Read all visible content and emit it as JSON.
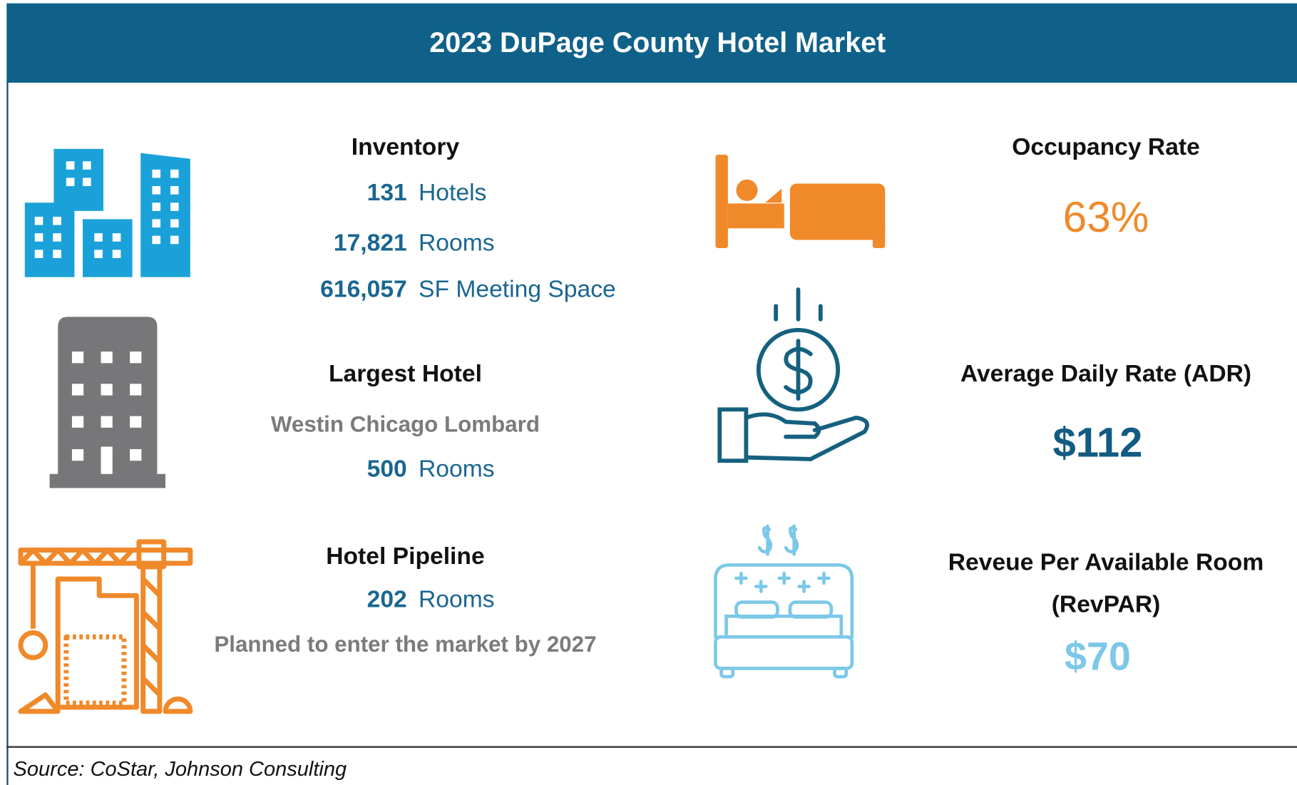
{
  "header": {
    "title": "2023 DuPage County Hotel Market"
  },
  "inventory": {
    "heading": "Inventory",
    "items": [
      {
        "value": "131",
        "label": "Hotels"
      },
      {
        "value": "17,821",
        "label": "Rooms"
      },
      {
        "value": "616,057",
        "label": "SF Meeting Space"
      }
    ]
  },
  "largest_hotel": {
    "heading": "Largest Hotel",
    "name": "Westin Chicago Lombard",
    "value": "500",
    "label": "Rooms"
  },
  "pipeline": {
    "heading": "Hotel Pipeline",
    "value": "202",
    "label": "Rooms",
    "note": "Planned to enter the market by 2027"
  },
  "occupancy": {
    "heading": "Occupancy Rate",
    "value": "63%"
  },
  "adr": {
    "heading": "Average Daily Rate (ADR)",
    "value": "$112"
  },
  "revpar": {
    "heading": "Reveue Per Available Room (RevPAR)",
    "value": "$70"
  },
  "source": "Source: CoStar, Johnson Consulting"
}
